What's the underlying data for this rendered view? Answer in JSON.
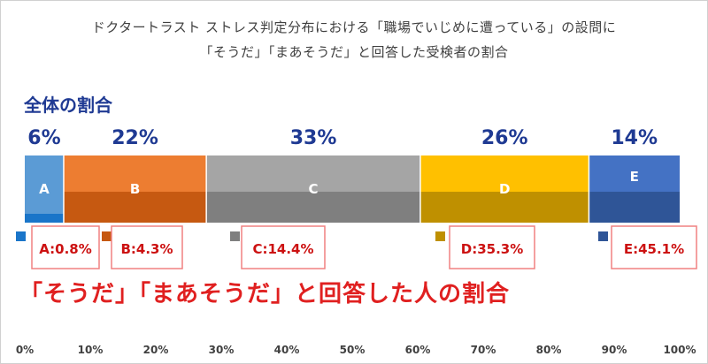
{
  "title": {
    "line1": "ドクタートラスト ストレス判定分布における「職場でいじめに遭っている」の設問に",
    "line2": "「そうだ」「まあそうだ」と回答した受検者の割合"
  },
  "subtitle": "全体の割合",
  "note": "「そうだ」「まあそうだ」と回答した人の割合",
  "chart_data": {
    "type": "bar",
    "orientation": "horizontal-stacked",
    "x_ticks": [
      "0%",
      "10%",
      "20%",
      "30%",
      "40%",
      "50%",
      "60%",
      "70%",
      "80%",
      "90%",
      "100%"
    ],
    "xlim": [
      0,
      100
    ],
    "grid": false,
    "categories": [
      "A",
      "B",
      "C",
      "D",
      "E"
    ],
    "share_labels": [
      "6%",
      "22%",
      "33%",
      "26%",
      "14%"
    ],
    "shares": [
      6,
      22,
      33,
      26,
      14
    ],
    "subset_labels": [
      "A:0.8%",
      "B:4.3%",
      "C:14.4%",
      "D:35.3%",
      "E:45.1%"
    ],
    "subset_rates": [
      0.8,
      4.3,
      14.4,
      35.3,
      45.1
    ],
    "colors_top": [
      "#5b9bd5",
      "#ed7d31",
      "#a5a5a5",
      "#ffc000",
      "#4472c4"
    ],
    "colors_bottom": [
      "#1a75c9",
      "#c65911",
      "#7f7f7f",
      "#bf9000",
      "#2f5597"
    ],
    "label_color": "#1f3a93",
    "callout_border": "#f08080",
    "callout_text": "#cc1111"
  }
}
